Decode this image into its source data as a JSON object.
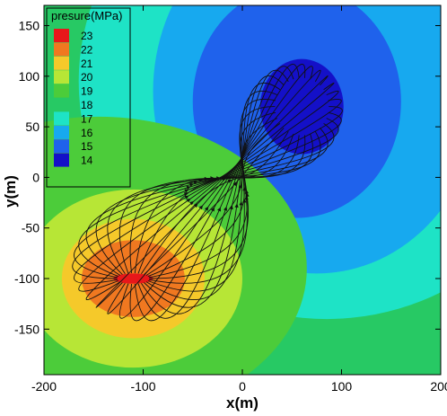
{
  "chart_data": {
    "type": "heatmap",
    "title": "",
    "xlabel": "x(m)",
    "ylabel": "y(m)",
    "xlim": [
      -200,
      200
    ],
    "ylim": [
      -195,
      170
    ],
    "x_ticks": [
      -200,
      -100,
      0,
      100,
      200
    ],
    "y_ticks": [
      -150,
      -100,
      -50,
      0,
      50,
      100,
      150
    ],
    "grid": false,
    "legend_placement": "top-left",
    "legend": {
      "title": "presure(MPa)",
      "levels": [
        {
          "value": 23,
          "color": "#e8171a"
        },
        {
          "value": 22,
          "color": "#f07820"
        },
        {
          "value": 21,
          "color": "#f5c92a"
        },
        {
          "value": 20,
          "color": "#b7e636"
        },
        {
          "value": 19,
          "color": "#4ccc3a"
        },
        {
          "value": 18,
          "color": "#27c964"
        },
        {
          "value": 17,
          "color": "#1ee3c6"
        },
        {
          "value": 16,
          "color": "#17a9ef"
        },
        {
          "value": 15,
          "color": "#1f62ec"
        },
        {
          "value": 14,
          "color": "#1410c8"
        }
      ]
    },
    "field": {
      "high_pressure_center": {
        "x": -110,
        "y": -100,
        "value": 23
      },
      "low_pressure_center": {
        "x": 60,
        "y": 70,
        "value": 14
      },
      "background_value": 18
    },
    "streamlines": "flow paths running from the high-pressure zone around (-110,-100) to the low-pressure zone around (60,70)"
  }
}
